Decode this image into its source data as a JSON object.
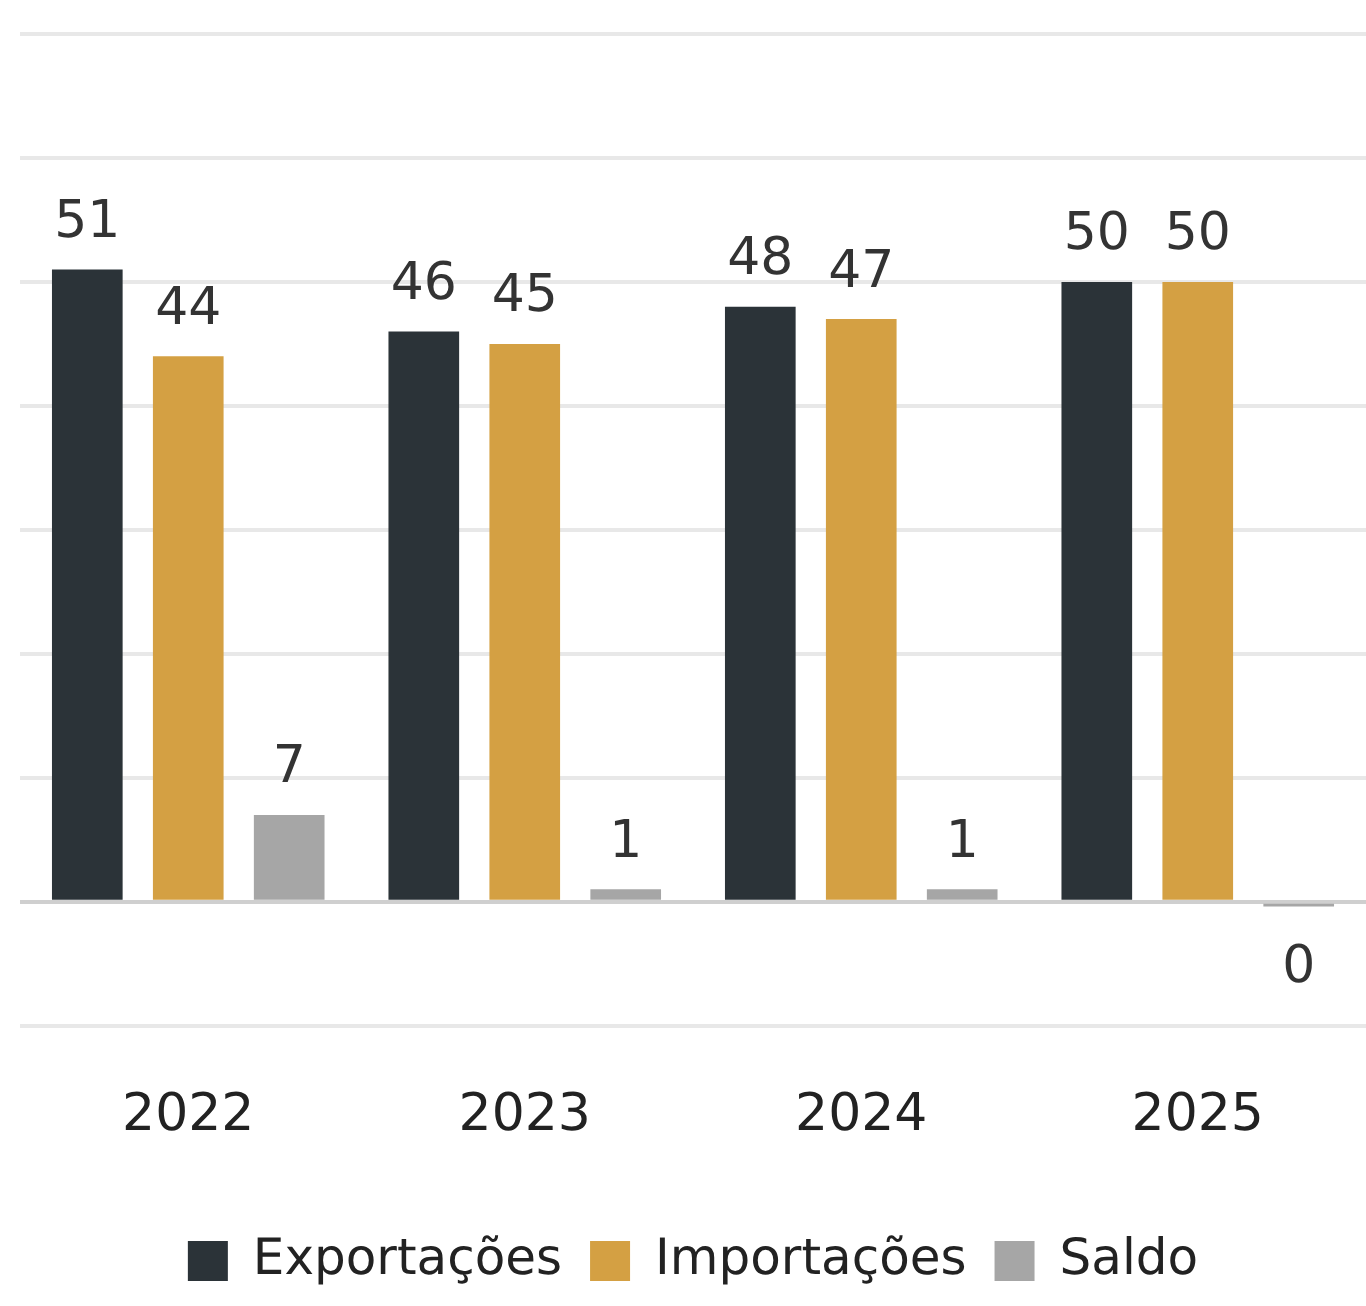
{
  "chart_data": {
    "type": "bar",
    "categories": [
      "2022",
      "2023",
      "2024",
      "2025"
    ],
    "series": [
      {
        "name": "Exportações",
        "color": "#2b3338",
        "values": [
          51,
          46,
          48,
          50
        ],
        "value_labels": [
          "51",
          "46",
          "48",
          "50"
        ]
      },
      {
        "name": "Importações",
        "color": "#d4a043",
        "values": [
          44,
          45,
          47,
          50
        ],
        "value_labels": [
          "44",
          "45",
          "47",
          "50"
        ]
      },
      {
        "name": "Saldo",
        "color": "#a6a6a6",
        "values": [
          7,
          1,
          1,
          -0.4
        ],
        "value_labels": [
          "7",
          "1",
          "1",
          "0"
        ]
      }
    ],
    "ylim": [
      -10,
      70
    ],
    "yticks": [
      {
        "value": -10,
        "label": null
      },
      {
        "value": 0,
        "label": null
      },
      {
        "value": 10,
        "label": null
      },
      {
        "value": 20,
        "label": null
      },
      {
        "value": 30,
        "label": null
      },
      {
        "value": 40,
        "label": null
      },
      {
        "value": 50,
        "label": null
      },
      {
        "value": 60,
        "label": null
      },
      {
        "value": 70,
        "label": null
      }
    ],
    "grid": "y",
    "legend": "bottom",
    "tick_labels": "x"
  }
}
